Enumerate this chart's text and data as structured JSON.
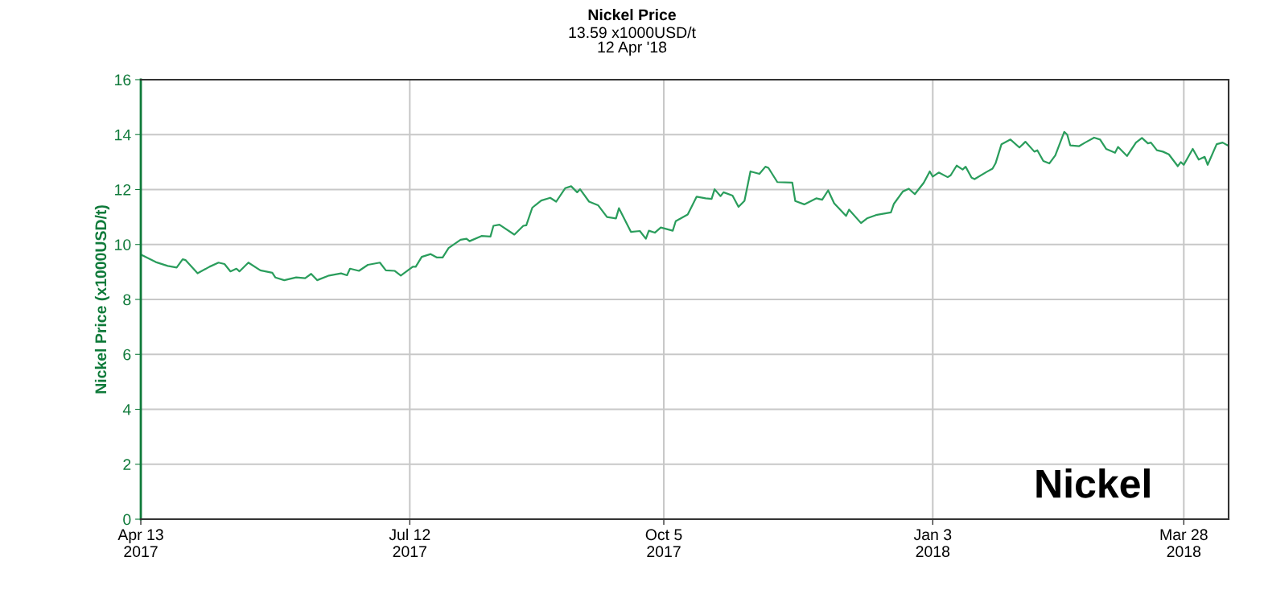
{
  "chart_data": {
    "type": "line",
    "title": "Nickel Price",
    "subtitle": "13.59 x1000USD/t\n12 Apr '18",
    "ylabel": "Nickel Price (x1000USD/t)",
    "annotations": [
      "Nickel"
    ],
    "xlim": [
      "2017-04-13",
      "2018-04-12"
    ],
    "xticks": [
      {
        "value": "2017-04-13",
        "label": "Apr 13\n2017"
      },
      {
        "value": "2017-07-12",
        "label": "Jul 12\n2017"
      },
      {
        "value": "2017-10-05",
        "label": "Oct 5\n2017"
      },
      {
        "value": "2018-01-03",
        "label": "Jan 3\n2018"
      },
      {
        "value": "2018-03-28",
        "label": "Mar 28\n2018"
      }
    ],
    "ylim": [
      0,
      16
    ],
    "yticks": [
      0,
      2,
      4,
      6,
      8,
      10,
      12,
      14,
      16
    ],
    "grid": true,
    "marker": "none",
    "line_style": "solid",
    "x": [
      "2017-04-13",
      "2017-04-18",
      "2017-04-22",
      "2017-04-25",
      "2017-04-27",
      "2017-04-28",
      "2017-05-02",
      "2017-05-06",
      "2017-05-09",
      "2017-05-11",
      "2017-05-13",
      "2017-05-15",
      "2017-05-16",
      "2017-05-19",
      "2017-05-23",
      "2017-05-27",
      "2017-05-28",
      "2017-05-31",
      "2017-06-04",
      "2017-06-07",
      "2017-06-09",
      "2017-06-11",
      "2017-06-15",
      "2017-06-19",
      "2017-06-21",
      "2017-06-22",
      "2017-06-25",
      "2017-06-28",
      "2017-07-02",
      "2017-07-04",
      "2017-07-07",
      "2017-07-09",
      "2017-07-13",
      "2017-07-14",
      "2017-07-16",
      "2017-07-19",
      "2017-07-21",
      "2017-07-23",
      "2017-07-25",
      "2017-07-29",
      "2017-07-31",
      "2017-08-01",
      "2017-08-05",
      "2017-08-08",
      "2017-08-09",
      "2017-08-11",
      "2017-08-16",
      "2017-08-19",
      "2017-08-20",
      "2017-08-22",
      "2017-08-25",
      "2017-08-28",
      "2017-08-30",
      "2017-09-02",
      "2017-09-04",
      "2017-09-06",
      "2017-09-07",
      "2017-09-10",
      "2017-09-13",
      "2017-09-16",
      "2017-09-19",
      "2017-09-20",
      "2017-09-24",
      "2017-09-27",
      "2017-09-29",
      "2017-09-30",
      "2017-10-02",
      "2017-10-04",
      "2017-10-08",
      "2017-10-09",
      "2017-10-13",
      "2017-10-16",
      "2017-10-19",
      "2017-10-21",
      "2017-10-22",
      "2017-10-24",
      "2017-10-25",
      "2017-10-28",
      "2017-10-30",
      "2017-11-01",
      "2017-11-03",
      "2017-11-06",
      "2017-11-08",
      "2017-11-09",
      "2017-11-12",
      "2017-11-17",
      "2017-11-18",
      "2017-11-21",
      "2017-11-25",
      "2017-11-27",
      "2017-11-29",
      "2017-12-01",
      "2017-12-05",
      "2017-12-06",
      "2017-12-10",
      "2017-12-12",
      "2017-12-15",
      "2017-12-20",
      "2017-12-21",
      "2017-12-24",
      "2017-12-26",
      "2017-12-28",
      "2017-12-31",
      "2018-01-02",
      "2018-01-03",
      "2018-01-05",
      "2018-01-08",
      "2018-01-09",
      "2018-01-11",
      "2018-01-13",
      "2018-01-14",
      "2018-01-16",
      "2018-01-17",
      "2018-01-21",
      "2018-01-23",
      "2018-01-24",
      "2018-01-26",
      "2018-01-29",
      "2018-02-01",
      "2018-02-03",
      "2018-02-06",
      "2018-02-07",
      "2018-02-09",
      "2018-02-11",
      "2018-02-13",
      "2018-02-16",
      "2018-02-17",
      "2018-02-18",
      "2018-02-21",
      "2018-02-23",
      "2018-02-26",
      "2018-02-28",
      "2018-03-02",
      "2018-03-05",
      "2018-03-06",
      "2018-03-09",
      "2018-03-12",
      "2018-03-14",
      "2018-03-16",
      "2018-03-17",
      "2018-03-19",
      "2018-03-21",
      "2018-03-23",
      "2018-03-26",
      "2018-03-27",
      "2018-03-28",
      "2018-03-31",
      "2018-04-02",
      "2018-04-04",
      "2018-04-05",
      "2018-04-08",
      "2018-04-10",
      "2018-04-12"
    ],
    "series": [
      {
        "color": "#2a9d5c",
        "values": [
          9.63,
          9.36,
          9.22,
          9.16,
          9.46,
          9.43,
          8.95,
          9.19,
          9.34,
          9.29,
          9.02,
          9.12,
          9.02,
          9.34,
          9.06,
          8.97,
          8.8,
          8.7,
          8.8,
          8.77,
          8.93,
          8.7,
          8.87,
          8.95,
          8.88,
          9.12,
          9.04,
          9.26,
          9.34,
          9.06,
          9.04,
          8.87,
          9.19,
          9.19,
          9.55,
          9.65,
          9.53,
          9.53,
          9.87,
          10.17,
          10.21,
          10.12,
          10.31,
          10.29,
          10.68,
          10.72,
          10.36,
          10.68,
          10.7,
          11.34,
          11.6,
          11.7,
          11.56,
          12.05,
          12.12,
          11.9,
          12.01,
          11.56,
          11.43,
          11.0,
          10.95,
          11.32,
          10.46,
          10.49,
          10.21,
          10.5,
          10.43,
          10.62,
          10.5,
          10.85,
          11.09,
          11.74,
          11.68,
          11.66,
          12.01,
          11.76,
          11.9,
          11.78,
          11.37,
          11.59,
          12.66,
          12.57,
          12.83,
          12.79,
          12.27,
          12.25,
          11.58,
          11.46,
          11.68,
          11.63,
          11.97,
          11.5,
          11.04,
          11.27,
          10.78,
          10.95,
          11.07,
          11.17,
          11.48,
          11.93,
          12.03,
          11.83,
          12.25,
          12.66,
          12.47,
          12.62,
          12.45,
          12.52,
          12.87,
          12.73,
          12.83,
          12.43,
          12.38,
          12.64,
          12.76,
          12.95,
          13.65,
          13.82,
          13.53,
          13.74,
          13.38,
          13.43,
          13.04,
          12.95,
          13.24,
          14.1,
          14.0,
          13.61,
          13.58,
          13.71,
          13.89,
          13.82,
          13.48,
          13.34,
          13.55,
          13.22,
          13.71,
          13.88,
          13.68,
          13.71,
          13.43,
          13.38,
          13.28,
          12.85,
          13.0,
          12.9,
          13.48,
          13.09,
          13.19,
          12.9,
          13.65,
          13.71,
          13.59
        ]
      }
    ]
  }
}
